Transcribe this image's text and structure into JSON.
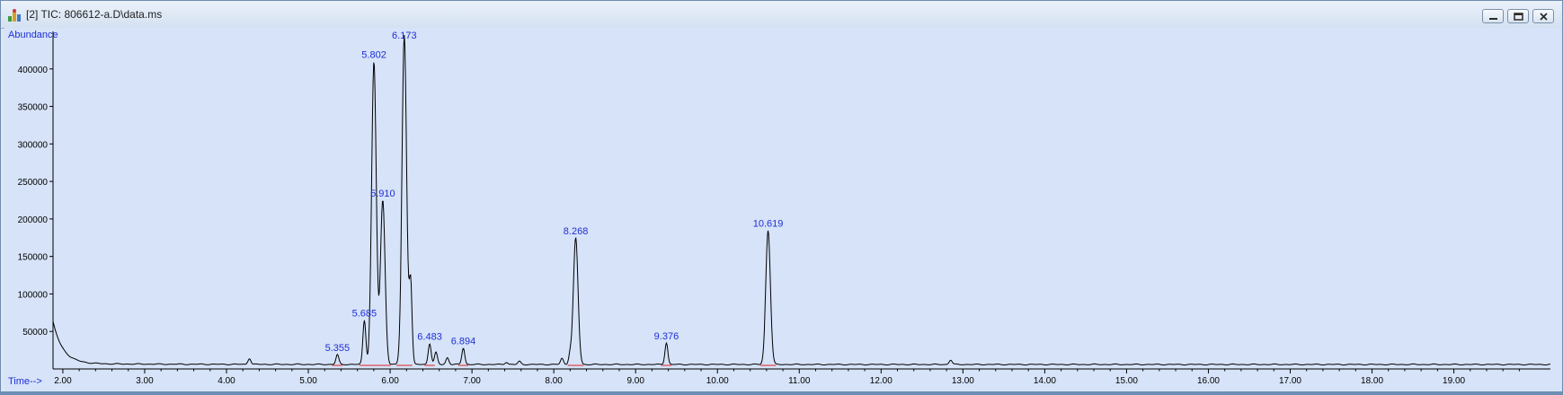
{
  "window": {
    "title": "[2] TIC: 806612-a.D\\data.ms",
    "controls": [
      "minimize",
      "restore",
      "close"
    ]
  },
  "icons": {
    "app": "chromatogram-app-icon",
    "minimize": "minimize-icon",
    "restore": "restore-icon",
    "close": "close-icon"
  },
  "colors": {
    "trace": "#000000",
    "peak_label": "#1f2fd6",
    "axis_label": "#1f2fd6",
    "baseline": "#e02020",
    "plot_bg": "#d6e3f8"
  },
  "chart_data": {
    "type": "line",
    "ylabel": "Abundance",
    "xlabel": "Time-->",
    "xlim": [
      1.88,
      20.18
    ],
    "ylim": [
      0,
      450000
    ],
    "x_ticks": [
      "2.00",
      "3.00",
      "4.00",
      "5.00",
      "6.00",
      "7.00",
      "8.00",
      "9.00",
      "10.00",
      "11.00",
      "12.00",
      "13.00",
      "14.00",
      "15.00",
      "16.00",
      "17.00",
      "18.00",
      "19.00"
    ],
    "y_ticks": [
      "50000",
      "100000",
      "150000",
      "200000",
      "250000",
      "300000",
      "350000",
      "400000"
    ],
    "peaks": [
      {
        "label": "5.355",
        "x": 5.355,
        "y": 19000
      },
      {
        "label": "5.685",
        "x": 5.685,
        "y": 65000
      },
      {
        "label": "5.802",
        "x": 5.802,
        "y": 410000
      },
      {
        "label": "5.910",
        "x": 5.91,
        "y": 225000
      },
      {
        "label": "6.173",
        "x": 6.173,
        "y": 445000
      },
      {
        "label": "6.483",
        "x": 6.483,
        "y": 34000
      },
      {
        "label": "6.894",
        "x": 6.894,
        "y": 28000
      },
      {
        "label": "8.268",
        "x": 8.268,
        "y": 175000
      },
      {
        "label": "9.376",
        "x": 9.376,
        "y": 35000
      },
      {
        "label": "10.619",
        "x": 10.619,
        "y": 185000
      }
    ],
    "minor_peaks": [
      {
        "x": 4.28,
        "y": 14000
      },
      {
        "x": 6.25,
        "y": 115000
      },
      {
        "x": 6.56,
        "y": 22000
      },
      {
        "x": 6.7,
        "y": 15000
      },
      {
        "x": 7.42,
        "y": 9000
      },
      {
        "x": 7.58,
        "y": 10000
      },
      {
        "x": 8.1,
        "y": 14000
      },
      {
        "x": 8.2,
        "y": 20000
      },
      {
        "x": 12.85,
        "y": 12000
      }
    ],
    "trace_start": {
      "x": 1.88,
      "y": 62000
    },
    "baseline_level": 6000
  }
}
